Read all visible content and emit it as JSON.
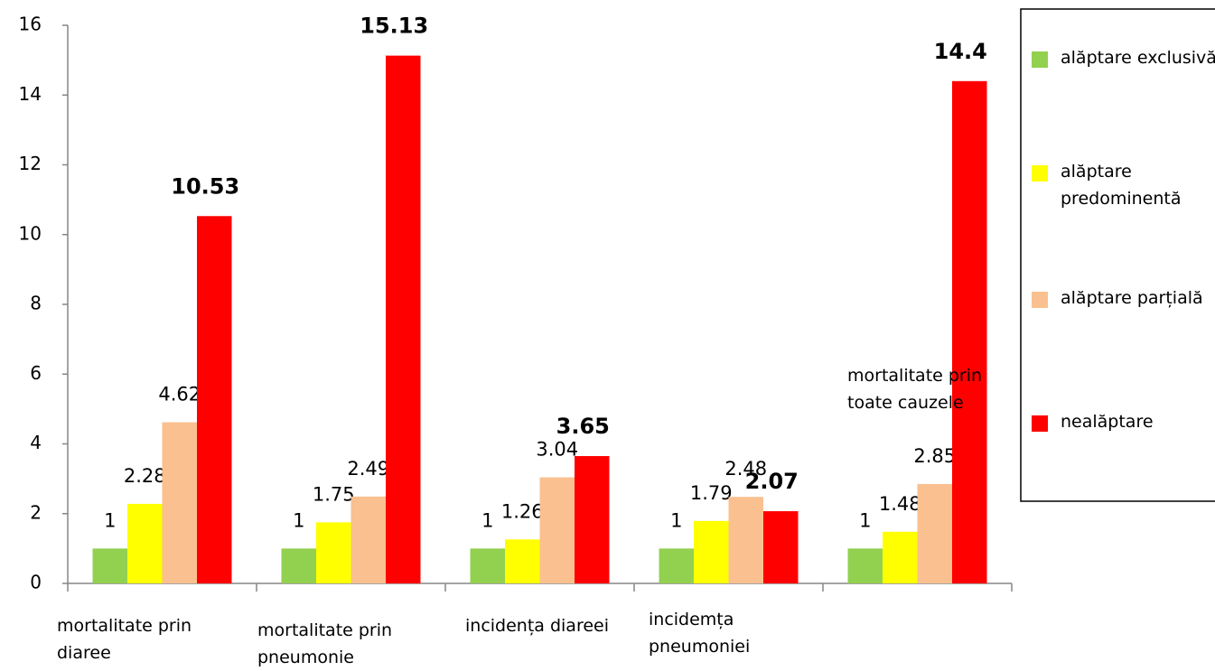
{
  "chart_data": {
    "type": "bar",
    "categories": [
      "mortalitate prin diaree",
      "mortalitate prin pneumonie",
      "incidența diareei",
      "incidemța pneumoniei",
      "mortalitate prin toate cauzele"
    ],
    "series": [
      {
        "name": "alăptare exclusivă",
        "color": "#92d050",
        "values": [
          1,
          1,
          1,
          1,
          1
        ]
      },
      {
        "name": "alăptare predominentă",
        "color": "#ffff00",
        "values": [
          2.28,
          1.75,
          1.26,
          1.79,
          1.48
        ]
      },
      {
        "name": "alăptare parțială",
        "color": "#fac090",
        "values": [
          4.62,
          2.49,
          3.04,
          2.48,
          2.85
        ]
      },
      {
        "name": "nealăptare",
        "color": "#ff0000",
        "values": [
          10.53,
          15.13,
          3.65,
          2.07,
          14.4
        ]
      }
    ],
    "ylim": [
      0,
      16
    ],
    "yticks": [
      0,
      2,
      4,
      6,
      8,
      10,
      12,
      14,
      16
    ],
    "legend": "right"
  }
}
